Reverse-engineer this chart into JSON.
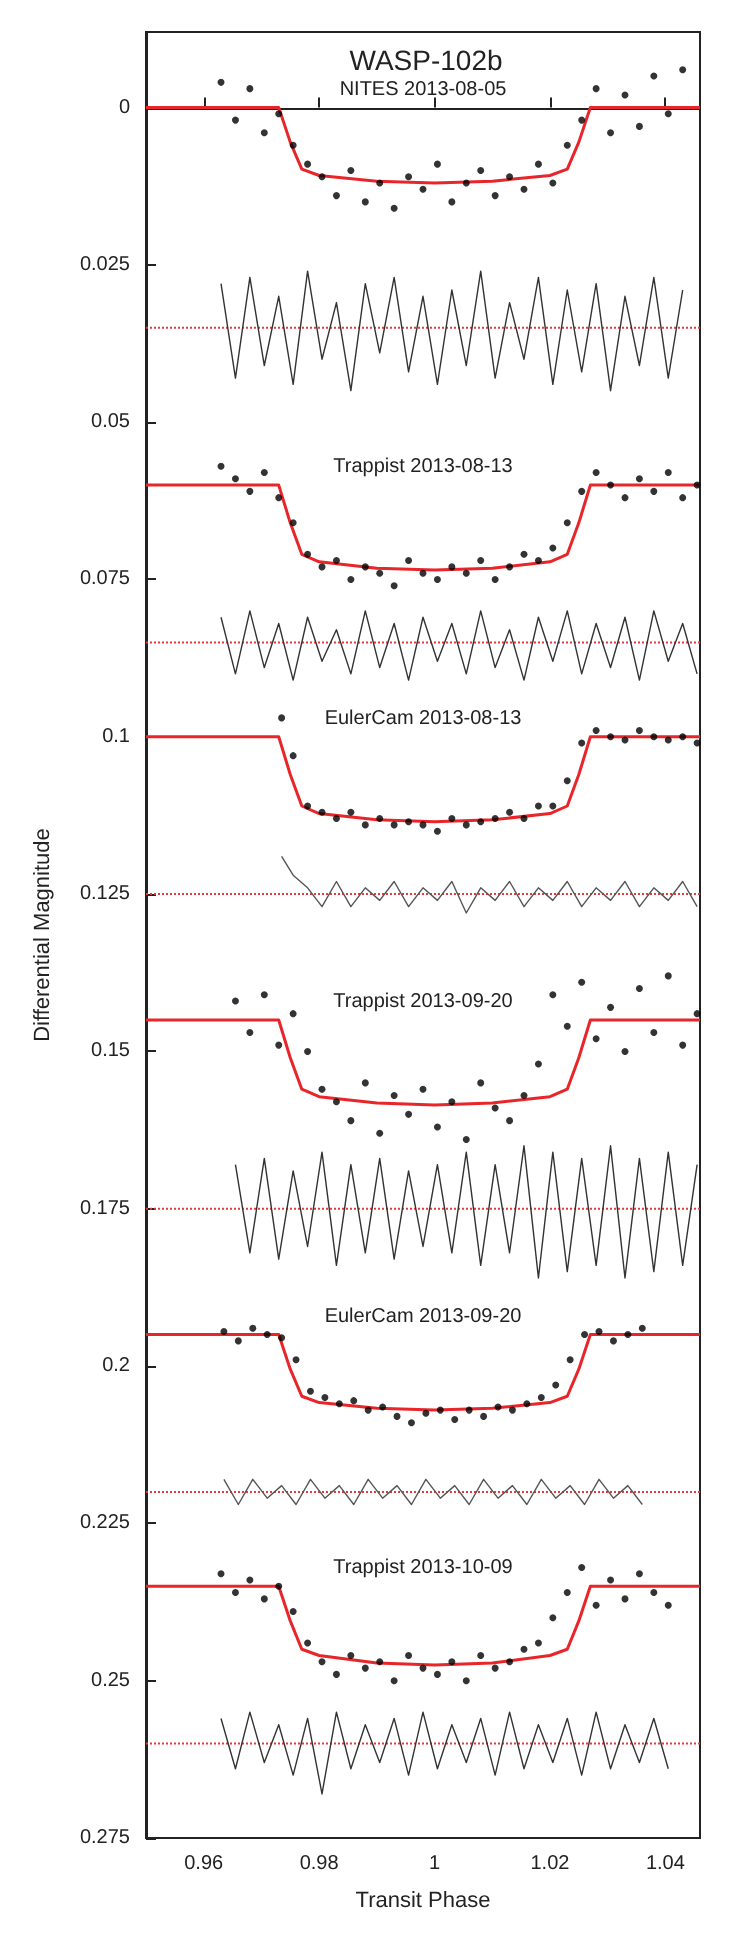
{
  "chart_data": {
    "type": "scatter",
    "title": "WASP-102b",
    "xlabel": "Transit Phase",
    "ylabel": "Differential Magnitude",
    "xlim": [
      0.95,
      1.046
    ],
    "ylim": [
      0.275,
      -0.012
    ],
    "xticks": [
      0.96,
      0.98,
      1,
      1.02,
      1.04
    ],
    "yticks": [
      0,
      0.025,
      0.05,
      0.075,
      0.1,
      0.125,
      0.15,
      0.175,
      0.2,
      0.225,
      0.25,
      0.275
    ],
    "grid": false,
    "annotations": [
      "NITES 2013-08-05",
      "Trappist 2013-08-13",
      "EulerCam 2013-08-13",
      "Trappist 2013-09-20",
      "EulerCam 2013-09-20",
      "Trappist 2013-10-09"
    ],
    "ref_lines": [
      {
        "axis": "y",
        "value": 0.035,
        "color": "#e8383b",
        "line_style": "dotted"
      },
      {
        "axis": "y",
        "value": 0.085,
        "color": "#e8383b",
        "line_style": "dotted"
      },
      {
        "axis": "y",
        "value": 0.125,
        "color": "#e8383b",
        "line_style": "dotted"
      },
      {
        "axis": "y",
        "value": 0.175,
        "color": "#e8383b",
        "line_style": "dotted"
      },
      {
        "axis": "y",
        "value": 0.22,
        "color": "#e8383b",
        "line_style": "dotted"
      },
      {
        "axis": "y",
        "value": 0.26,
        "color": "#e8383b",
        "line_style": "dotted"
      }
    ],
    "series": [
      {
        "type": "line",
        "color": "#333333",
        "x": [
          0.963,
          0.9655,
          0.968,
          0.9705,
          0.973,
          0.9755,
          0.978,
          0.9805,
          0.983,
          0.9855,
          0.988,
          0.9905,
          0.993,
          0.9955,
          0.998,
          1.0005,
          1.003,
          1.0055,
          1.008,
          1.0105,
          1.013,
          1.0155,
          1.018,
          1.0205,
          1.023,
          1.0255,
          1.028,
          1.0305,
          1.033,
          1.0355,
          1.038,
          1.0405,
          1.043
        ],
        "values": [
          0.028,
          0.043,
          0.027,
          0.041,
          0.03,
          0.044,
          0.026,
          0.04,
          0.031,
          0.045,
          0.028,
          0.039,
          0.027,
          0.042,
          0.03,
          0.044,
          0.029,
          0.041,
          0.026,
          0.043,
          0.031,
          0.04,
          0.027,
          0.044,
          0.029,
          0.042,
          0.028,
          0.045,
          0.03,
          0.041,
          0.027,
          0.043,
          0.029
        ]
      },
      {
        "type": "line",
        "color": "#333333",
        "x": [
          0.963,
          0.9655,
          0.968,
          0.9705,
          0.973,
          0.9755,
          0.978,
          0.9805,
          0.983,
          0.9855,
          0.988,
          0.9905,
          0.993,
          0.9955,
          0.998,
          1.0005,
          1.003,
          1.0055,
          1.008,
          1.0105,
          1.013,
          1.0155,
          1.018,
          1.0205,
          1.023,
          1.0255,
          1.028,
          1.0305,
          1.033,
          1.0355,
          1.038,
          1.0405,
          1.043,
          1.0455
        ],
        "values": [
          0.081,
          0.09,
          0.08,
          0.089,
          0.082,
          0.091,
          0.081,
          0.088,
          0.083,
          0.09,
          0.08,
          0.089,
          0.082,
          0.091,
          0.081,
          0.088,
          0.082,
          0.09,
          0.08,
          0.089,
          0.083,
          0.091,
          0.081,
          0.088,
          0.08,
          0.09,
          0.082,
          0.089,
          0.081,
          0.091,
          0.08,
          0.088,
          0.082,
          0.09
        ]
      },
      {
        "type": "line",
        "color": "#555555",
        "x": [
          0.9735,
          0.9755,
          0.978,
          0.9805,
          0.983,
          0.9855,
          0.988,
          0.9905,
          0.993,
          0.9955,
          0.998,
          1.0005,
          1.003,
          1.0055,
          1.008,
          1.0105,
          1.013,
          1.0155,
          1.018,
          1.0205,
          1.023,
          1.0255,
          1.028,
          1.0305,
          1.033,
          1.0355,
          1.038,
          1.0405,
          1.043,
          1.0455
        ],
        "values": [
          0.119,
          0.122,
          0.124,
          0.127,
          0.123,
          0.127,
          0.124,
          0.126,
          0.123,
          0.127,
          0.124,
          0.126,
          0.123,
          0.128,
          0.124,
          0.126,
          0.123,
          0.127,
          0.124,
          0.126,
          0.123,
          0.127,
          0.124,
          0.126,
          0.123,
          0.127,
          0.124,
          0.126,
          0.123,
          0.127
        ]
      },
      {
        "type": "line",
        "color": "#333333",
        "x": [
          0.9655,
          0.968,
          0.9705,
          0.973,
          0.9755,
          0.978,
          0.9805,
          0.983,
          0.9855,
          0.988,
          0.9905,
          0.993,
          0.9955,
          0.998,
          1.0005,
          1.003,
          1.0055,
          1.008,
          1.0105,
          1.013,
          1.0155,
          1.018,
          1.0205,
          1.023,
          1.0255,
          1.028,
          1.0305,
          1.033,
          1.0355,
          1.038,
          1.0405,
          1.043,
          1.0455
        ],
        "values": [
          0.168,
          0.182,
          0.167,
          0.183,
          0.169,
          0.181,
          0.166,
          0.184,
          0.168,
          0.182,
          0.167,
          0.183,
          0.169,
          0.181,
          0.168,
          0.182,
          0.166,
          0.184,
          0.168,
          0.182,
          0.165,
          0.186,
          0.166,
          0.185,
          0.167,
          0.184,
          0.165,
          0.186,
          0.167,
          0.185,
          0.166,
          0.184,
          0.168
        ]
      },
      {
        "type": "line",
        "color": "#555555",
        "x": [
          0.9635,
          0.966,
          0.9685,
          0.971,
          0.9735,
          0.976,
          0.9785,
          0.981,
          0.9835,
          0.986,
          0.9885,
          0.991,
          0.9935,
          0.996,
          0.9985,
          1.001,
          1.0035,
          1.006,
          1.0085,
          1.011,
          1.0135,
          1.016,
          1.0185,
          1.021,
          1.0235,
          1.026,
          1.0285,
          1.031,
          1.0335,
          1.036
        ],
        "values": [
          0.218,
          0.222,
          0.218,
          0.221,
          0.219,
          0.222,
          0.218,
          0.221,
          0.219,
          0.222,
          0.218,
          0.221,
          0.219,
          0.222,
          0.218,
          0.221,
          0.219,
          0.222,
          0.218,
          0.221,
          0.219,
          0.222,
          0.218,
          0.221,
          0.219,
          0.222,
          0.218,
          0.221,
          0.219,
          0.222
        ]
      },
      {
        "type": "line",
        "color": "#333333",
        "x": [
          0.963,
          0.9655,
          0.968,
          0.9705,
          0.973,
          0.9755,
          0.978,
          0.9805,
          0.983,
          0.9855,
          0.988,
          0.9905,
          0.993,
          0.9955,
          0.998,
          1.0005,
          1.003,
          1.0055,
          1.008,
          1.0105,
          1.013,
          1.0155,
          1.018,
          1.0205,
          1.023,
          1.0255,
          1.028,
          1.0305,
          1.033,
          1.0355,
          1.038,
          1.0405
        ],
        "values": [
          0.256,
          0.264,
          0.255,
          0.263,
          0.257,
          0.265,
          0.256,
          0.268,
          0.255,
          0.264,
          0.257,
          0.263,
          0.256,
          0.265,
          0.255,
          0.264,
          0.257,
          0.263,
          0.256,
          0.265,
          0.255,
          0.264,
          0.257,
          0.263,
          0.256,
          0.265,
          0.255,
          0.264,
          0.257,
          0.263,
          0.256,
          0.264
        ]
      },
      {
        "marker": "circle",
        "color": "#000000",
        "x": [
          0.963,
          0.9655,
          0.968,
          0.9705,
          0.973,
          0.9755,
          0.978,
          0.9805,
          0.983,
          0.9855,
          0.988,
          0.9905,
          0.993,
          0.9955,
          0.998,
          1.0005,
          1.003,
          1.0055,
          1.008,
          1.0105,
          1.013,
          1.0155,
          1.018,
          1.0205,
          1.023,
          1.0255,
          1.028,
          1.0305,
          1.033,
          1.0355,
          1.038,
          1.0405,
          1.043
        ],
        "values": [
          -0.004,
          0.002,
          -0.003,
          0.004,
          0.001,
          0.006,
          0.009,
          0.011,
          0.014,
          0.01,
          0.015,
          0.012,
          0.016,
          0.011,
          0.013,
          0.009,
          0.015,
          0.012,
          0.01,
          0.014,
          0.011,
          0.013,
          0.009,
          0.012,
          0.006,
          0.002,
          -0.003,
          0.004,
          -0.002,
          0.003,
          -0.005,
          0.001,
          -0.006
        ]
      },
      {
        "marker": "circle",
        "color": "#000000",
        "x": [
          0.963,
          0.9655,
          0.968,
          0.9705,
          0.973,
          0.9755,
          0.978,
          0.9805,
          0.983,
          0.9855,
          0.988,
          0.9905,
          0.993,
          0.9955,
          0.998,
          1.0005,
          1.003,
          1.0055,
          1.008,
          1.0105,
          1.013,
          1.0155,
          1.018,
          1.0205,
          1.023,
          1.0255,
          1.028,
          1.0305,
          1.033,
          1.0355,
          1.038,
          1.0405,
          1.043,
          1.0455
        ],
        "values": [
          0.057,
          0.059,
          0.061,
          0.058,
          0.062,
          0.066,
          0.071,
          0.073,
          0.072,
          0.075,
          0.073,
          0.074,
          0.076,
          0.072,
          0.074,
          0.075,
          0.073,
          0.074,
          0.072,
          0.075,
          0.073,
          0.071,
          0.072,
          0.07,
          0.066,
          0.061,
          0.058,
          0.06,
          0.062,
          0.059,
          0.061,
          0.058,
          0.062,
          0.06
        ]
      },
      {
        "marker": "circle",
        "color": "#000000",
        "x": [
          0.9735,
          0.9755,
          0.978,
          0.9805,
          0.983,
          0.9855,
          0.988,
          0.9905,
          0.993,
          0.9955,
          0.998,
          1.0005,
          1.003,
          1.0055,
          1.008,
          1.0105,
          1.013,
          1.0155,
          1.018,
          1.0205,
          1.023,
          1.0255,
          1.028,
          1.0305,
          1.033,
          1.0355,
          1.038,
          1.0405,
          1.043,
          1.0455
        ],
        "values": [
          0.097,
          0.103,
          0.111,
          0.112,
          0.113,
          0.112,
          0.114,
          0.113,
          0.114,
          0.1135,
          0.114,
          0.115,
          0.113,
          0.114,
          0.1135,
          0.113,
          0.112,
          0.113,
          0.111,
          0.111,
          0.107,
          0.101,
          0.099,
          0.1,
          0.1005,
          0.099,
          0.1,
          0.1005,
          0.1,
          0.101
        ]
      },
      {
        "marker": "circle",
        "color": "#000000",
        "x": [
          0.9655,
          0.968,
          0.9705,
          0.973,
          0.9755,
          0.978,
          0.9805,
          0.983,
          0.9855,
          0.988,
          0.9905,
          0.993,
          0.9955,
          0.998,
          1.0005,
          1.003,
          1.0055,
          1.008,
          1.0105,
          1.013,
          1.0155,
          1.018,
          1.0205,
          1.023,
          1.0255,
          1.028,
          1.0305,
          1.033,
          1.0355,
          1.038,
          1.0405,
          1.043,
          1.0455
        ],
        "values": [
          0.142,
          0.147,
          0.141,
          0.149,
          0.144,
          0.15,
          0.156,
          0.158,
          0.161,
          0.155,
          0.163,
          0.157,
          0.16,
          0.156,
          0.162,
          0.158,
          0.164,
          0.155,
          0.159,
          0.161,
          0.157,
          0.152,
          0.141,
          0.146,
          0.139,
          0.148,
          0.143,
          0.15,
          0.14,
          0.147,
          0.138,
          0.149,
          0.144
        ]
      },
      {
        "marker": "circle",
        "color": "#000000",
        "x": [
          0.9635,
          0.966,
          0.9685,
          0.971,
          0.9735,
          0.976,
          0.9785,
          0.981,
          0.9835,
          0.986,
          0.9885,
          0.991,
          0.9935,
          0.996,
          0.9985,
          1.001,
          1.0035,
          1.006,
          1.0085,
          1.011,
          1.0135,
          1.016,
          1.0185,
          1.021,
          1.0235,
          1.026,
          1.0285,
          1.031,
          1.0335,
          1.036
        ],
        "values": [
          0.1945,
          0.196,
          0.194,
          0.195,
          0.1955,
          0.199,
          0.204,
          0.205,
          0.206,
          0.2055,
          0.207,
          0.2065,
          0.208,
          0.209,
          0.2075,
          0.207,
          0.2085,
          0.207,
          0.208,
          0.2065,
          0.207,
          0.206,
          0.205,
          0.203,
          0.199,
          0.195,
          0.1945,
          0.196,
          0.195,
          0.194
        ]
      },
      {
        "marker": "circle",
        "color": "#000000",
        "x": [
          0.963,
          0.9655,
          0.968,
          0.9705,
          0.973,
          0.9755,
          0.978,
          0.9805,
          0.983,
          0.9855,
          0.988,
          0.9905,
          0.993,
          0.9955,
          0.998,
          1.0005,
          1.003,
          1.0055,
          1.008,
          1.0105,
          1.013,
          1.0155,
          1.018,
          1.0205,
          1.023,
          1.0255,
          1.028,
          1.0305,
          1.033,
          1.0355,
          1.038,
          1.0405
        ],
        "values": [
          0.233,
          0.236,
          0.234,
          0.237,
          0.235,
          0.239,
          0.244,
          0.247,
          0.249,
          0.246,
          0.248,
          0.247,
          0.25,
          0.246,
          0.248,
          0.249,
          0.247,
          0.25,
          0.246,
          0.248,
          0.247,
          0.245,
          0.244,
          0.24,
          0.236,
          0.232,
          0.238,
          0.234,
          0.237,
          0.233,
          0.236,
          0.238
        ]
      },
      {
        "type": "line",
        "color": "#e8262a",
        "x": [
          0.95,
          0.973,
          0.975,
          0.977,
          0.98,
          0.99,
          1.0,
          1.01,
          1.02,
          1.023,
          1.025,
          1.027,
          1.046
        ],
        "values": [
          0,
          0,
          0.0055,
          0.0098,
          0.0108,
          0.0117,
          0.012,
          0.0117,
          0.0108,
          0.0098,
          0.0055,
          0,
          0
        ]
      },
      {
        "type": "line",
        "color": "#e8262a",
        "x": [
          0.95,
          0.973,
          0.975,
          0.977,
          0.98,
          0.99,
          1.0,
          1.01,
          1.02,
          1.023,
          1.025,
          1.027,
          1.046
        ],
        "values": [
          0.06,
          0.06,
          0.066,
          0.071,
          0.0722,
          0.0732,
          0.0735,
          0.0732,
          0.0722,
          0.071,
          0.066,
          0.06,
          0.06
        ]
      },
      {
        "type": "line",
        "color": "#e8262a",
        "x": [
          0.95,
          0.973,
          0.975,
          0.977,
          0.98,
          0.99,
          1.0,
          1.01,
          1.02,
          1.023,
          1.025,
          1.027,
          1.046
        ],
        "values": [
          0.1,
          0.1,
          0.106,
          0.111,
          0.1122,
          0.1132,
          0.1135,
          0.1132,
          0.1122,
          0.111,
          0.106,
          0.1,
          0.1
        ]
      },
      {
        "type": "line",
        "color": "#e8262a",
        "x": [
          0.95,
          0.973,
          0.975,
          0.977,
          0.98,
          0.99,
          1.0,
          1.01,
          1.02,
          1.023,
          1.025,
          1.027,
          1.046
        ],
        "values": [
          0.145,
          0.145,
          0.151,
          0.156,
          0.1572,
          0.1582,
          0.1585,
          0.1582,
          0.1572,
          0.156,
          0.151,
          0.145,
          0.145
        ]
      },
      {
        "type": "line",
        "color": "#e8262a",
        "x": [
          0.95,
          0.973,
          0.975,
          0.977,
          0.98,
          0.99,
          1.0,
          1.01,
          1.02,
          1.023,
          1.025,
          1.027,
          1.046
        ],
        "values": [
          0.195,
          0.195,
          0.2005,
          0.2048,
          0.2058,
          0.2067,
          0.207,
          0.2067,
          0.2058,
          0.2048,
          0.2005,
          0.195,
          0.195
        ]
      },
      {
        "type": "line",
        "color": "#e8262a",
        "x": [
          0.95,
          0.973,
          0.975,
          0.977,
          0.98,
          0.99,
          1.0,
          1.01,
          1.02,
          1.023,
          1.025,
          1.027,
          1.046
        ],
        "values": [
          0.235,
          0.235,
          0.2405,
          0.245,
          0.246,
          0.2472,
          0.2475,
          0.2472,
          0.246,
          0.245,
          0.2405,
          0.235,
          0.235
        ]
      }
    ]
  }
}
